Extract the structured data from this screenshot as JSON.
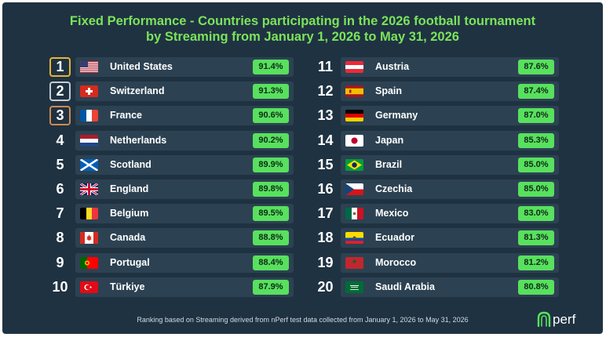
{
  "title_line1": "Fixed Performance - Countries participating in the 2026 football tournament",
  "title_line2": "by Streaming from January 1, 2026 to May 31, 2026",
  "footer": "Ranking based on Streaming derived from nPerf test data collected from January 1, 2026 to May 31, 2026",
  "logo": "nperf",
  "colors": {
    "background": "#1f3242",
    "row": "#2c4252",
    "accent": "#7be35a",
    "badge": "#58e05e",
    "gold": "#e6b437",
    "silver": "#c8ccd0",
    "bronze": "#d08a4e"
  },
  "rankings": [
    {
      "rank": "1",
      "country": "United States",
      "value": "91.4%",
      "flag": "us-flag",
      "medal": "gold"
    },
    {
      "rank": "2",
      "country": "Switzerland",
      "value": "91.3%",
      "flag": "switzerland-flag",
      "medal": "silver"
    },
    {
      "rank": "3",
      "country": "France",
      "value": "90.6%",
      "flag": "france-flag",
      "medal": "bronze"
    },
    {
      "rank": "4",
      "country": "Netherlands",
      "value": "90.2%",
      "flag": "netherlands-flag",
      "medal": ""
    },
    {
      "rank": "5",
      "country": "Scotland",
      "value": "89.9%",
      "flag": "scotland-flag",
      "medal": ""
    },
    {
      "rank": "6",
      "country": "England",
      "value": "89.8%",
      "flag": "uk-flag",
      "medal": ""
    },
    {
      "rank": "7",
      "country": "Belgium",
      "value": "89.5%",
      "flag": "belgium-flag",
      "medal": ""
    },
    {
      "rank": "8",
      "country": "Canada",
      "value": "88.8%",
      "flag": "canada-flag",
      "medal": ""
    },
    {
      "rank": "9",
      "country": "Portugal",
      "value": "88.4%",
      "flag": "portugal-flag",
      "medal": ""
    },
    {
      "rank": "10",
      "country": "Türkiye",
      "value": "87.9%",
      "flag": "turkiye-flag",
      "medal": ""
    },
    {
      "rank": "11",
      "country": "Austria",
      "value": "87.6%",
      "flag": "austria-flag",
      "medal": ""
    },
    {
      "rank": "12",
      "country": "Spain",
      "value": "87.4%",
      "flag": "spain-flag",
      "medal": ""
    },
    {
      "rank": "13",
      "country": "Germany",
      "value": "87.0%",
      "flag": "germany-flag",
      "medal": ""
    },
    {
      "rank": "14",
      "country": "Japan",
      "value": "85.3%",
      "flag": "japan-flag",
      "medal": ""
    },
    {
      "rank": "15",
      "country": "Brazil",
      "value": "85.0%",
      "flag": "brazil-flag",
      "medal": ""
    },
    {
      "rank": "16",
      "country": "Czechia",
      "value": "85.0%",
      "flag": "czechia-flag",
      "medal": ""
    },
    {
      "rank": "17",
      "country": "Mexico",
      "value": "83.0%",
      "flag": "mexico-flag",
      "medal": ""
    },
    {
      "rank": "18",
      "country": "Ecuador",
      "value": "81.3%",
      "flag": "ecuador-flag",
      "medal": ""
    },
    {
      "rank": "19",
      "country": "Morocco",
      "value": "81.2%",
      "flag": "morocco-flag",
      "medal": ""
    },
    {
      "rank": "20",
      "country": "Saudi Arabia",
      "value": "80.8%",
      "flag": "saudi-arabia-flag",
      "medal": ""
    }
  ]
}
